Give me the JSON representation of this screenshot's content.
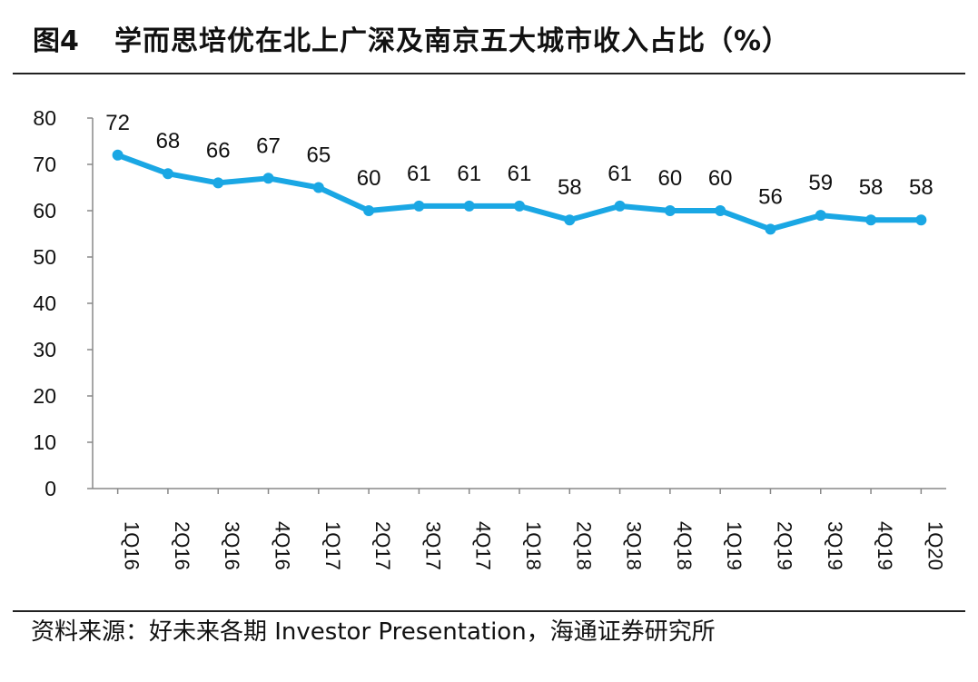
{
  "header": {
    "figure_label": "图4",
    "title": "学而思培优在北上广深及南京五大城市收入占比（%）"
  },
  "footer": {
    "source": "资料来源：好未来各期 Investor Presentation，海通证券研究所"
  },
  "colors": {
    "series_line": "#1aa7e4",
    "axis": "#888888",
    "text": "#111111"
  },
  "chart_data": {
    "type": "line",
    "title": "学而思培优在北上广深及南京五大城市收入占比（%）",
    "xlabel": "",
    "ylabel": "",
    "categories": [
      "1Q16",
      "2Q16",
      "3Q16",
      "4Q16",
      "1Q17",
      "2Q17",
      "3Q17",
      "4Q17",
      "1Q18",
      "2Q18",
      "3Q18",
      "4Q18",
      "1Q19",
      "2Q19",
      "3Q19",
      "4Q19",
      "1Q20"
    ],
    "series": [
      {
        "values": [
          72,
          68,
          66,
          67,
          65,
          60,
          61,
          61,
          61,
          58,
          61,
          60,
          60,
          56,
          59,
          58,
          58
        ]
      }
    ],
    "ylim": [
      0,
      80
    ],
    "yticks": [
      0,
      10,
      20,
      30,
      40,
      50,
      60,
      70,
      80
    ],
    "grid": false,
    "legend": "none",
    "data_labels": true,
    "x_tick_rotation": "vertical"
  }
}
